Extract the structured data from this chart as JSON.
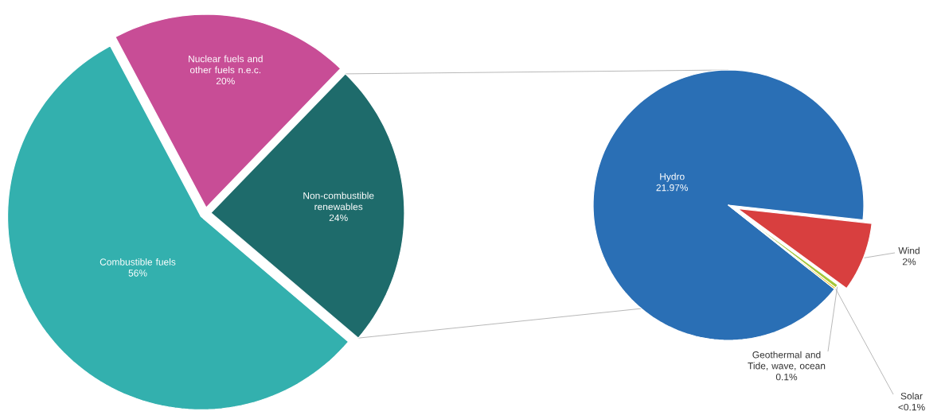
{
  "chart_data": [
    {
      "type": "pie",
      "categories": [
        "Combustible fuels",
        "Nuclear fuels and other fuels n.e.c.",
        "Non-combustible renewables"
      ],
      "values": [
        56,
        20,
        24
      ],
      "colors": [
        "#33b0ae",
        "#c84d96",
        "#1e6b6b"
      ],
      "value_labels": [
        "56%",
        "20%",
        "24%"
      ]
    },
    {
      "type": "pie",
      "categories": [
        "Hydro",
        "Wind",
        "Geothermal and Tide, wave, ocean",
        "Solar"
      ],
      "values": [
        21.97,
        2,
        0.1,
        0.05
      ],
      "colors": [
        "#2a6fb5",
        "#d83f3f",
        "#a5c639",
        "#f0c020"
      ],
      "value_labels": [
        "21.97%",
        "2%",
        "0.1%",
        "<0.1%"
      ]
    }
  ]
}
